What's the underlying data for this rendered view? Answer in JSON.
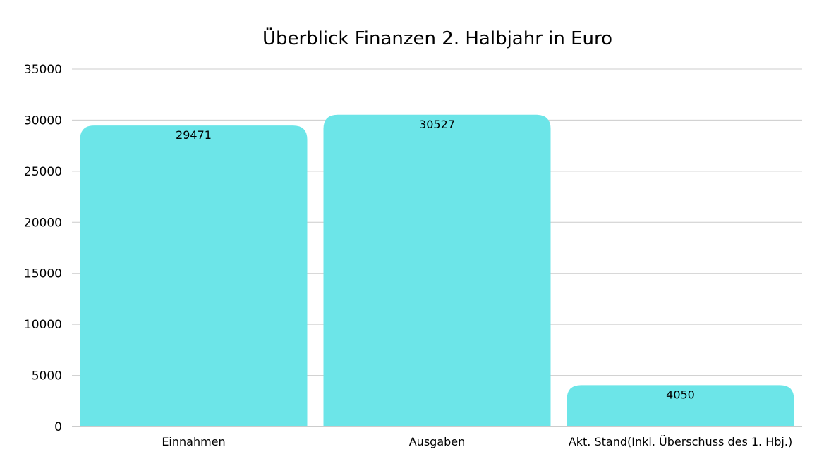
{
  "chart_data": {
    "type": "bar",
    "title": "Überblick Finanzen 2. Halbjahr in Euro",
    "xlabel": "",
    "ylabel": "",
    "categories": [
      "Einnahmen",
      "Ausgaben",
      "Akt. Stand(Inkl. Überschuss des 1. Hbj.)"
    ],
    "values": [
      29471,
      30527,
      4050
    ],
    "data_labels": [
      "29471",
      "30527",
      "4050"
    ],
    "ylim": [
      0,
      35000
    ],
    "yticks": [
      0,
      5000,
      10000,
      15000,
      20000,
      25000,
      30000,
      35000
    ],
    "ytick_labels": [
      "0",
      "5000",
      "10000",
      "15000",
      "20000",
      "25000",
      "30000",
      "35000"
    ],
    "grid": true,
    "legend": "none",
    "bar_color": "#6ce5e8",
    "grid_color": "#cccccc",
    "baseline_color": "#999999"
  }
}
